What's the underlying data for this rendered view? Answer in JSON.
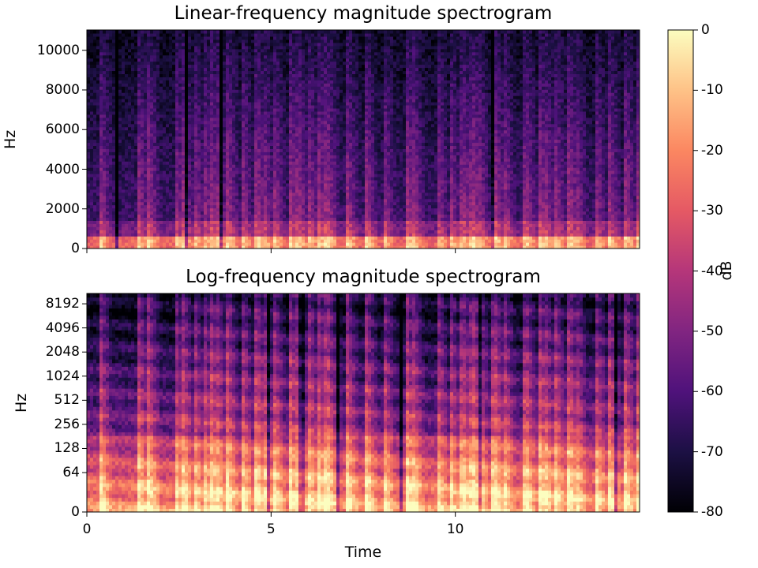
{
  "chart_data": [
    {
      "type": "heatmap",
      "title": "Linear-frequency magnitude spectrogram",
      "xlabel": "",
      "ylabel": "Hz",
      "xlim": [
        0,
        15
      ],
      "ylim": [
        0,
        11025
      ],
      "y_scale": "linear",
      "x_ticks": [
        0,
        5,
        10
      ],
      "x_tick_labels_shown": false,
      "y_ticks": [
        0,
        2000,
        4000,
        6000,
        8000,
        10000
      ],
      "y_tick_labels": [
        "0",
        "2000",
        "4000",
        "6000",
        "8000",
        "10000"
      ],
      "colormap": "magma",
      "value_range_db": [
        -80,
        0
      ],
      "grid": false
    },
    {
      "type": "heatmap",
      "title": "Log-frequency magnitude spectrogram",
      "xlabel": "Time",
      "ylabel": "Hz",
      "xlim": [
        0,
        15
      ],
      "y_scale": "log",
      "x_ticks": [
        0,
        5,
        10
      ],
      "x_tick_labels": [
        "0",
        "5",
        "10"
      ],
      "y_ticks": [
        0,
        64,
        128,
        256,
        512,
        1024,
        2048,
        4096,
        8192
      ],
      "y_tick_labels": [
        "0",
        "64",
        "128",
        "256",
        "512",
        "1024",
        "2048",
        "4096",
        "8192"
      ],
      "colormap": "magma",
      "value_range_db": [
        -80,
        0
      ],
      "grid": false
    }
  ],
  "colorbar": {
    "label": "dB",
    "ticks": [
      0,
      -10,
      -20,
      -30,
      -40,
      -50,
      -60,
      -70,
      -80
    ],
    "tick_labels": [
      "0",
      "-10",
      "-20",
      "-30",
      "-40",
      "-50",
      "-60",
      "-70",
      "-80"
    ],
    "colormap_stops": [
      "#000004",
      "#1c1044",
      "#4f127b",
      "#812581",
      "#b5367a",
      "#e55964",
      "#fb8761",
      "#fec287",
      "#fcfdbf"
    ]
  }
}
